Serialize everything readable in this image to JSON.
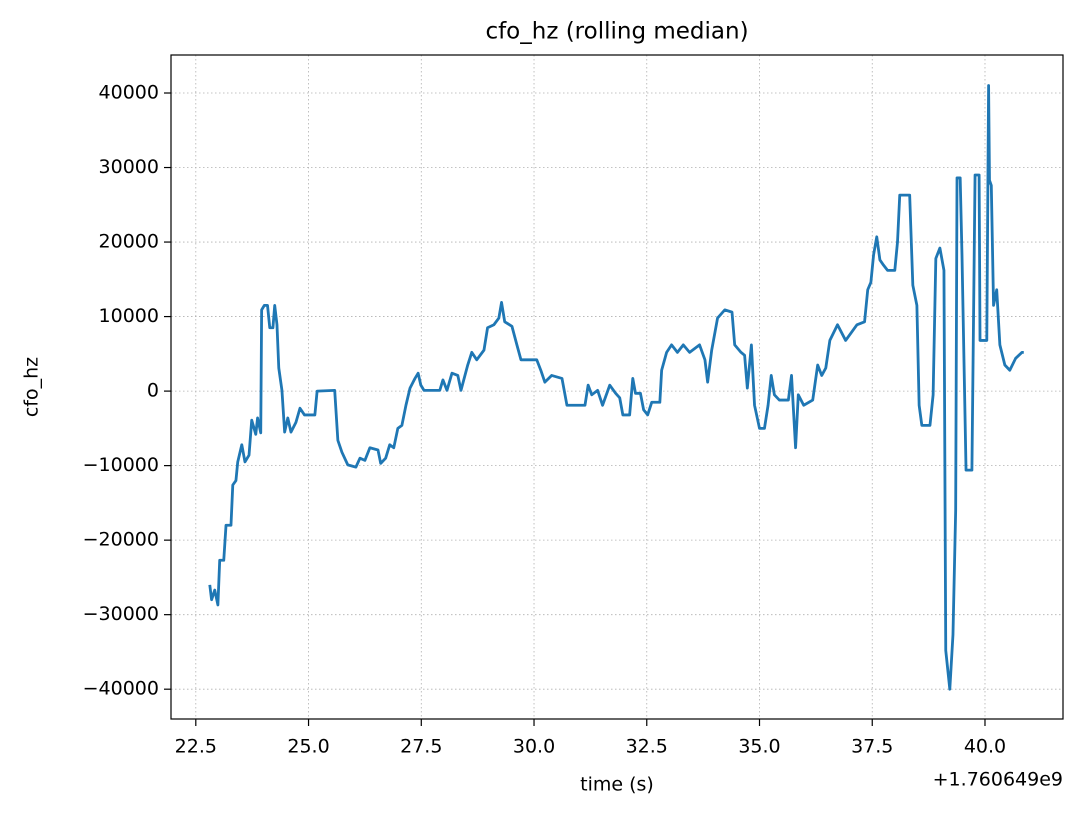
{
  "chart_data": {
    "type": "line",
    "title": "cfo_hz (rolling median)",
    "x_label": "time (s)",
    "y_label": "cfo_hz",
    "x_offset_label": "+1.760649e9",
    "color": "#1f77b4",
    "grid": true,
    "xlim": [
      21.95,
      41.73
    ],
    "ylim": [
      -44000,
      45100
    ],
    "xticks": [
      22.5,
      {
        "value": 25,
        "label": "25.0"
      },
      27.5,
      {
        "value": 30,
        "label": "30.0"
      },
      32.5,
      {
        "value": 35,
        "label": "35.0"
      },
      37.5,
      {
        "value": 40,
        "label": "40.0"
      }
    ],
    "yticks": [
      {
        "value": -40000,
        "label": "−40000"
      },
      {
        "value": -30000,
        "label": "−30000"
      },
      {
        "value": -20000,
        "label": "−20000"
      },
      {
        "value": -10000,
        "label": "−10000"
      },
      0,
      10000,
      20000,
      30000,
      40000
    ],
    "x": [
      22.81,
      22.85,
      22.92,
      22.99,
      23.03,
      23.12,
      23.17,
      23.28,
      23.32,
      23.39,
      23.43,
      23.52,
      23.59,
      23.68,
      23.74,
      23.83,
      23.87,
      23.94,
      23.96,
      24.02,
      24.09,
      24.14,
      24.21,
      24.25,
      24.3,
      24.34,
      24.41,
      24.47,
      24.54,
      24.61,
      24.72,
      24.81,
      24.91,
      25.14,
      25.19,
      25.58,
      25.65,
      25.74,
      25.87,
      26.05,
      26.14,
      26.25,
      26.36,
      26.54,
      26.6,
      26.71,
      26.8,
      26.89,
      26.98,
      27.07,
      27.16,
      27.25,
      27.36,
      27.43,
      27.49,
      27.56,
      27.91,
      27.98,
      28.07,
      28.18,
      28.31,
      28.38,
      28.53,
      28.62,
      28.73,
      28.89,
      28.97,
      29.11,
      29.22,
      29.28,
      29.35,
      29.51,
      29.62,
      29.71,
      30.06,
      30.15,
      30.24,
      30.39,
      30.62,
      30.73,
      31.13,
      31.2,
      31.28,
      31.41,
      31.52,
      31.68,
      31.81,
      31.9,
      31.97,
      32.12,
      32.19,
      32.25,
      32.36,
      32.43,
      32.52,
      32.61,
      32.79,
      32.83,
      32.94,
      33.05,
      33.18,
      33.31,
      33.45,
      33.67,
      33.79,
      33.85,
      33.94,
      34.07,
      34.23,
      34.39,
      34.45,
      34.59,
      34.67,
      34.73,
      34.82,
      34.89,
      35.0,
      35.11,
      35.19,
      35.26,
      35.33,
      35.44,
      35.64,
      35.71,
      35.8,
      35.86,
      35.98,
      36.18,
      36.29,
      36.38,
      36.47,
      36.56,
      36.73,
      36.91,
      37.16,
      37.33,
      37.4,
      37.47,
      37.53,
      37.6,
      37.67,
      37.75,
      37.84,
      38.0,
      38.06,
      38.11,
      38.33,
      38.4,
      38.49,
      38.54,
      38.6,
      38.78,
      38.85,
      38.91,
      39.0,
      39.09,
      39.13,
      39.22,
      39.29,
      39.35,
      39.38,
      39.45,
      39.49,
      39.58,
      39.71,
      39.78,
      39.87,
      39.89,
      40.04,
      40.08,
      40.1,
      40.14,
      40.19,
      40.26,
      40.33,
      40.44,
      40.55,
      40.68,
      40.82,
      40.86
    ],
    "values": [
      -26000,
      -28000,
      -26700,
      -28700,
      -22700,
      -22700,
      -18000,
      -18000,
      -12600,
      -12000,
      -9500,
      -7200,
      -9500,
      -8600,
      -3900,
      -5800,
      -3600,
      -5600,
      10900,
      11500,
      11500,
      8500,
      8500,
      11500,
      8900,
      3100,
      100,
      -5500,
      -3600,
      -5500,
      -4200,
      -2300,
      -3200,
      -3200,
      0,
      100,
      -6600,
      -8200,
      -9900,
      -10200,
      -9000,
      -9300,
      -7600,
      -7900,
      -9700,
      -9000,
      -7200,
      -7600,
      -5000,
      -4600,
      -1900,
      400,
      1700,
      2400,
      800,
      100,
      100,
      1500,
      100,
      2400,
      2100,
      100,
      3500,
      5200,
      4200,
      5500,
      8500,
      8900,
      9800,
      11900,
      9300,
      8700,
      6200,
      4200,
      4200,
      2800,
      1200,
      2100,
      1700,
      -1900,
      -1900,
      800,
      -500,
      100,
      -1900,
      800,
      -300,
      -900,
      -3200,
      -3200,
      1700,
      -300,
      -300,
      -2500,
      -3200,
      -1500,
      -1500,
      2800,
      5200,
      6200,
      5200,
      6200,
      5200,
      6200,
      4200,
      1200,
      5500,
      9800,
      10900,
      10600,
      6200,
      5200,
      4800,
      400,
      6200,
      -1900,
      -5000,
      -5000,
      -1900,
      2100,
      -500,
      -1200,
      -1200,
      2100,
      -7600,
      -500,
      -1900,
      -1200,
      3500,
      2100,
      3100,
      6800,
      8900,
      6800,
      8900,
      9300,
      13600,
      14600,
      18300,
      20700,
      17600,
      16900,
      16200,
      16200,
      20000,
      26300,
      26300,
      14200,
      11500,
      -1900,
      -4600,
      -4600,
      -500,
      17800,
      19200,
      16200,
      -34800,
      -40000,
      -32700,
      -16000,
      28600,
      28600,
      18300,
      -10600,
      -10600,
      29000,
      29000,
      6800,
      6800,
      41000,
      28300,
      27600,
      11500,
      13600,
      6200,
      3500,
      2800,
      4400,
      5200,
      5200
    ]
  }
}
